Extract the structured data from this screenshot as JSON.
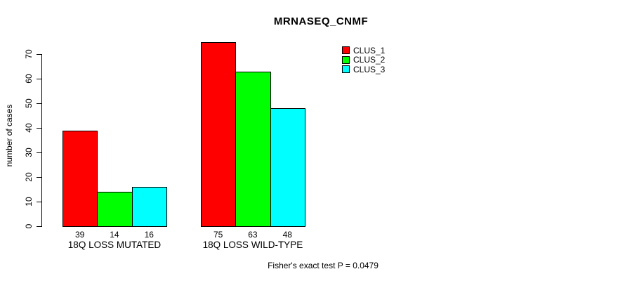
{
  "chart_data": {
    "type": "bar",
    "title": "MRNASEQ_CNMF",
    "xlabel": "",
    "ylabel": "number of cases",
    "categories": [
      "18Q LOSS MUTATED",
      "18Q LOSS WILD-TYPE"
    ],
    "series": [
      {
        "name": "CLUS_1",
        "color": "#ff0000",
        "values": [
          39,
          75
        ]
      },
      {
        "name": "CLUS_2",
        "color": "#00ff00",
        "values": [
          14,
          63
        ]
      },
      {
        "name": "CLUS_3",
        "color": "#00ffff",
        "values": [
          16,
          48
        ]
      }
    ],
    "bar_value_labels": [
      [
        39,
        14,
        16
      ],
      [
        75,
        63,
        48
      ]
    ],
    "yticks": [
      0,
      10,
      20,
      30,
      40,
      50,
      60,
      70
    ],
    "ylim": [
      0,
      75
    ],
    "grid": false,
    "legend_position": "right-of-plot",
    "annotation": "Fisher's exact test P = 0.0479",
    "bar_outline_color": "#000000",
    "background_color": "#ffffff",
    "text_color": "#000000"
  }
}
